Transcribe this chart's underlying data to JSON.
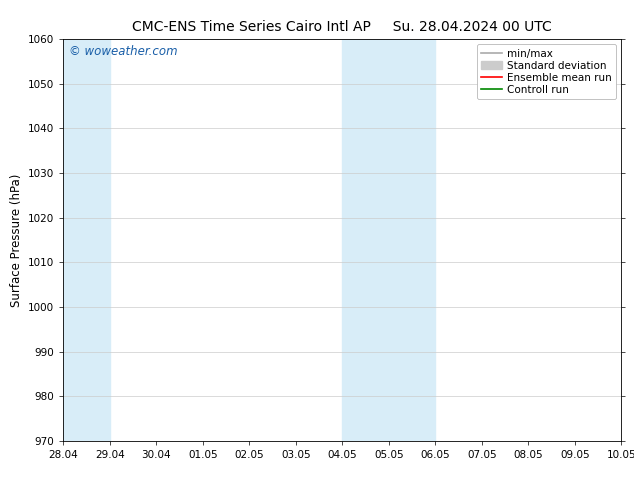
{
  "title_left": "CMC-ENS Time Series Cairo Intl AP",
  "title_right": "Su. 28.04.2024 00 UTC",
  "ylabel": "Surface Pressure (hPa)",
  "ylim": [
    970,
    1060
  ],
  "yticks": [
    970,
    980,
    990,
    1000,
    1010,
    1020,
    1030,
    1040,
    1050,
    1060
  ],
  "x_labels": [
    "28.04",
    "29.04",
    "30.04",
    "01.05",
    "02.05",
    "03.05",
    "04.05",
    "05.05",
    "06.05",
    "07.05",
    "08.05",
    "09.05",
    "10.05"
  ],
  "x_values": [
    0,
    1,
    2,
    3,
    4,
    5,
    6,
    7,
    8,
    9,
    10,
    11,
    12
  ],
  "shade_bands": [
    {
      "xmin": 0,
      "xmax": 1,
      "color": "#d8edf8"
    },
    {
      "xmin": 6,
      "xmax": 8,
      "color": "#d8edf8"
    }
  ],
  "legend_entries": [
    {
      "label": "min/max",
      "color": "#aaaaaa",
      "lw": 1.2
    },
    {
      "label": "Standard deviation",
      "color": "#cccccc",
      "lw": 5
    },
    {
      "label": "Ensemble mean run",
      "color": "#ff0000",
      "lw": 1.2
    },
    {
      "label": "Controll run",
      "color": "#008800",
      "lw": 1.2
    }
  ],
  "watermark": "© woweather.com",
  "watermark_color": "#1a5fa8",
  "bg_color": "#ffffff",
  "plot_bg_color": "#ffffff",
  "grid_color": "#cccccc",
  "title_fontsize": 10,
  "tick_fontsize": 7.5,
  "ylabel_fontsize": 8.5,
  "legend_fontsize": 7.5,
  "watermark_fontsize": 8.5
}
